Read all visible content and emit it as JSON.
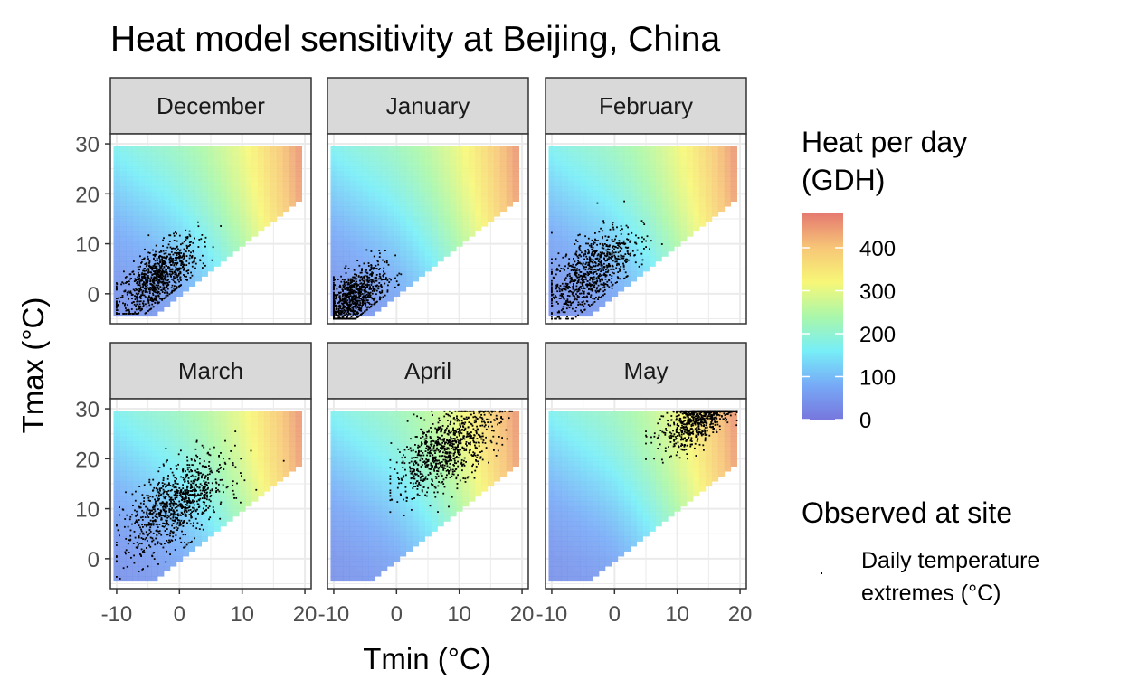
{
  "chart_data": {
    "type": "heatmap",
    "title": "Heat model sensitivity at Beijing, China",
    "xlabel": "Tmin (°C)",
    "ylabel": "Tmax (°C)",
    "xlim": [
      -11,
      21
    ],
    "ylim": [
      -6,
      32
    ],
    "x_ticks": [
      -10,
      0,
      10,
      20
    ],
    "y_ticks": [
      0,
      10,
      20,
      30
    ],
    "x_tick_labels": [
      "-10",
      "0",
      "10",
      "20"
    ],
    "y_tick_labels": [
      "0",
      "10",
      "20",
      "30"
    ],
    "grid": true,
    "heatmap": {
      "tmin_range": [
        -10,
        19
      ],
      "tmax_range": [
        -4,
        29
      ],
      "constraint": "Tmax >= Tmin",
      "fill_label": "Heat per day (GDH)",
      "color_stops": [
        "#7777dd",
        "#77aaf7",
        "#77eef7",
        "#aaf7aa",
        "#f7f777",
        "#f7c677",
        "#e57a70"
      ],
      "fill_range": [
        0,
        480
      ]
    },
    "facets": [
      {
        "name": "December",
        "tmin_mean": -3.5,
        "tmin_sd": 3.2,
        "tmax_offset": 6.5,
        "tmax_slope": 0.55,
        "tmax_sd": 3.0,
        "tmin_min": -10,
        "tmax_min": -4,
        "n": 900
      },
      {
        "name": "January",
        "tmin_mean": -7.0,
        "tmin_sd": 2.6,
        "tmax_offset": 5.8,
        "tmax_slope": 0.55,
        "tmax_sd": 2.8,
        "tmin_min": -10,
        "tmax_min": -5,
        "n": 900
      },
      {
        "name": "February",
        "tmin_mean": -4.0,
        "tmin_sd": 3.5,
        "tmax_offset": 8.2,
        "tmax_slope": 0.55,
        "tmax_sd": 3.6,
        "tmin_min": -10,
        "tmax_min": -5,
        "n": 850
      },
      {
        "name": "March",
        "tmin_mean": -0.5,
        "tmin_sd": 4.0,
        "tmax_offset": 11.2,
        "tmax_slope": 0.8,
        "tmax_sd": 3.8,
        "tmin_min": -10,
        "tmax_min": -4,
        "n": 930
      },
      {
        "name": "April",
        "tmin_mean": 8.0,
        "tmin_sd": 4.2,
        "tmax_offset": 14.0,
        "tmax_slope": 0.8,
        "tmax_sd": 3.5,
        "tmin_min": -1,
        "tmax_min": 4,
        "n": 900
      },
      {
        "name": "May",
        "tmin_mean": 14.0,
        "tmin_sd": 3.0,
        "tmax_offset": 15.0,
        "tmax_slope": 0.75,
        "tmax_sd": 2.6,
        "tmin_min": 5,
        "tmax_min": 16,
        "n": 930
      }
    ],
    "legend": {
      "position": "right",
      "fill_title_lines": [
        "Heat per day",
        "(GDH)"
      ],
      "fill_breaks": [
        0,
        100,
        200,
        300,
        400
      ],
      "fill_break_labels": [
        "0",
        "100",
        "200",
        "300",
        "400"
      ],
      "points_title": "Observed at site",
      "points_label_lines": [
        "Daily temperature",
        "extremes (°C)"
      ]
    }
  }
}
